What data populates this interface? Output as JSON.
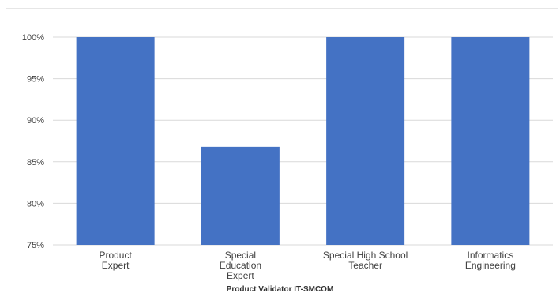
{
  "chart_data": {
    "type": "bar",
    "title": "",
    "xlabel": "Product Validator IT-SMCOM",
    "ylabel": "",
    "categories": [
      [
        "Product",
        "Expert"
      ],
      [
        "Special",
        "Education",
        "Expert"
      ],
      [
        "Special High School",
        "Teacher"
      ],
      [
        "Informatics",
        "Engineering"
      ]
    ],
    "values": [
      100,
      86.8,
      100,
      100
    ],
    "ylim": [
      75,
      100
    ],
    "yticks": [
      "75%",
      "80%",
      "85%",
      "90%",
      "95%",
      "100%"
    ],
    "ytick_values": [
      75,
      80,
      85,
      90,
      95,
      100
    ],
    "grid": true,
    "legend": "none",
    "bar_color": "#4472c4",
    "grid_color": "#d9d9d9"
  }
}
